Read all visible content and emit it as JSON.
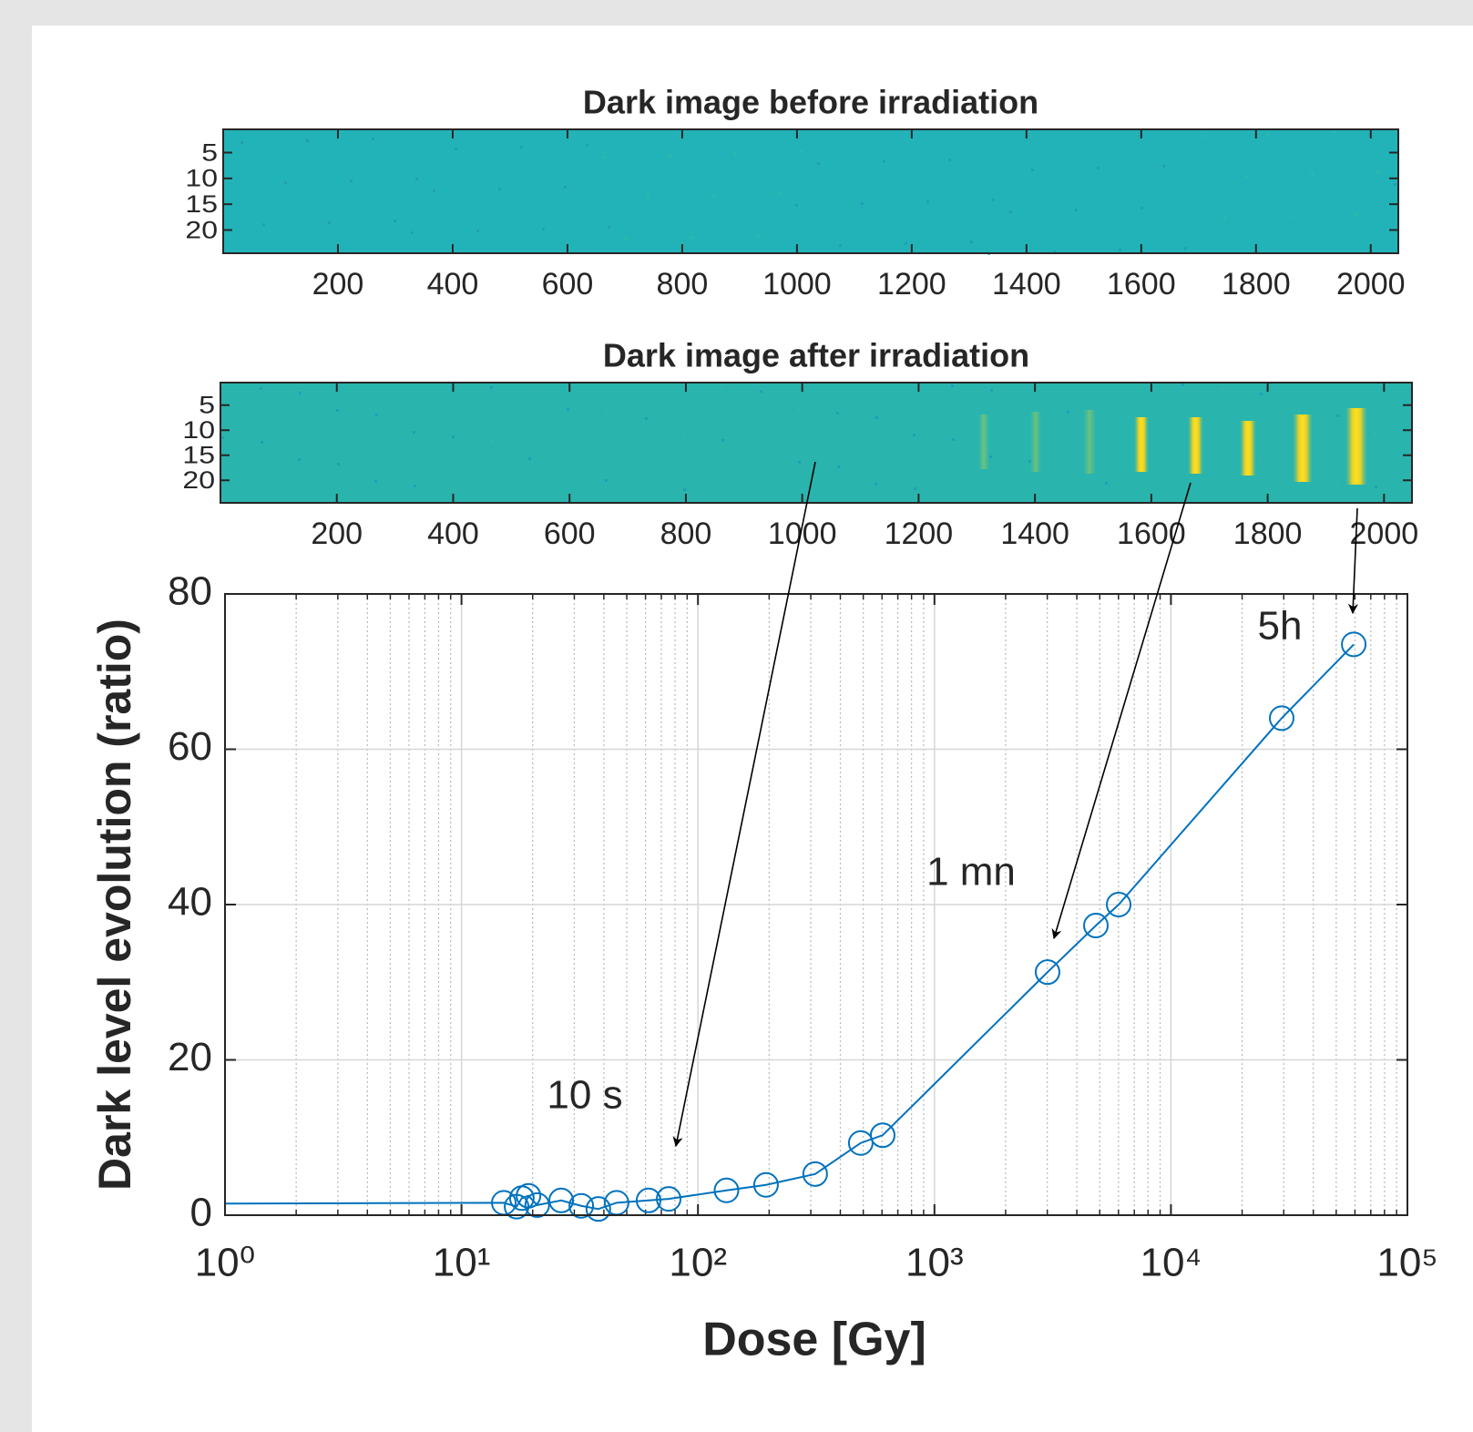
{
  "chart_data": [
    {
      "type": "image",
      "title": "Dark image before irradiation",
      "xlim": [
        0,
        2048
      ],
      "xticks": [
        200,
        400,
        600,
        800,
        1000,
        1200,
        1400,
        1600,
        1800,
        2000
      ],
      "ylim": [
        0.5,
        24.5
      ],
      "yticks": [
        5,
        10,
        15,
        20
      ],
      "y_reversed": true,
      "color": "#22b3b8"
    },
    {
      "type": "image",
      "title": "Dark image after irradiation",
      "xlim": [
        0,
        2048
      ],
      "xticks": [
        200,
        400,
        600,
        800,
        1000,
        1200,
        1400,
        1600,
        1800,
        2000
      ],
      "ylim": [
        0.5,
        24.5
      ],
      "yticks": [
        5,
        10,
        15,
        20
      ],
      "y_reversed": true,
      "color": "#2ab4ae"
    },
    {
      "type": "line",
      "x_label": "Dose [Gy]",
      "y_label": "Dark level evolution (ratio)",
      "x_scale": "log",
      "grid": true,
      "minor_grid": true,
      "xlim": [
        1,
        100000
      ],
      "xticks": [
        {
          "value": 1,
          "label": "10⁰"
        },
        {
          "value": 10,
          "label": "10¹"
        },
        {
          "value": 100,
          "label": "10²"
        },
        {
          "value": 1000,
          "label": "10³"
        },
        {
          "value": 10000,
          "label": "10⁴"
        },
        {
          "value": 100000,
          "label": "10⁵"
        }
      ],
      "ylim": [
        0,
        80
      ],
      "yticks": [
        0,
        20,
        40,
        60,
        80
      ],
      "series": [
        {
          "color": "#0072bd",
          "x": [
            1,
            15.1,
            17.1,
            18.0,
            19.2,
            20.9,
            26.4,
            32.1,
            37.9,
            45.3,
            61.8,
            75.2,
            132,
            194,
            313,
            488,
            604,
            3008,
            4816,
            6012,
            29400,
            59300
          ],
          "values": [
            1.5,
            1.6,
            1.1,
            2.2,
            2.5,
            1.3,
            1.9,
            1.2,
            0.8,
            1.6,
            1.9,
            2.1,
            3.2,
            3.9,
            5.3,
            9.3,
            10.3,
            31.3,
            37.3,
            40.0,
            64.0,
            73.5
          ],
          "markers": [
            false,
            true,
            true,
            true,
            true,
            true,
            true,
            true,
            true,
            true,
            true,
            true,
            true,
            true,
            true,
            true,
            true,
            true,
            true,
            true,
            true,
            true
          ]
        }
      ],
      "annotations": [
        "10 s",
        "1 mn",
        "5h"
      ]
    }
  ]
}
